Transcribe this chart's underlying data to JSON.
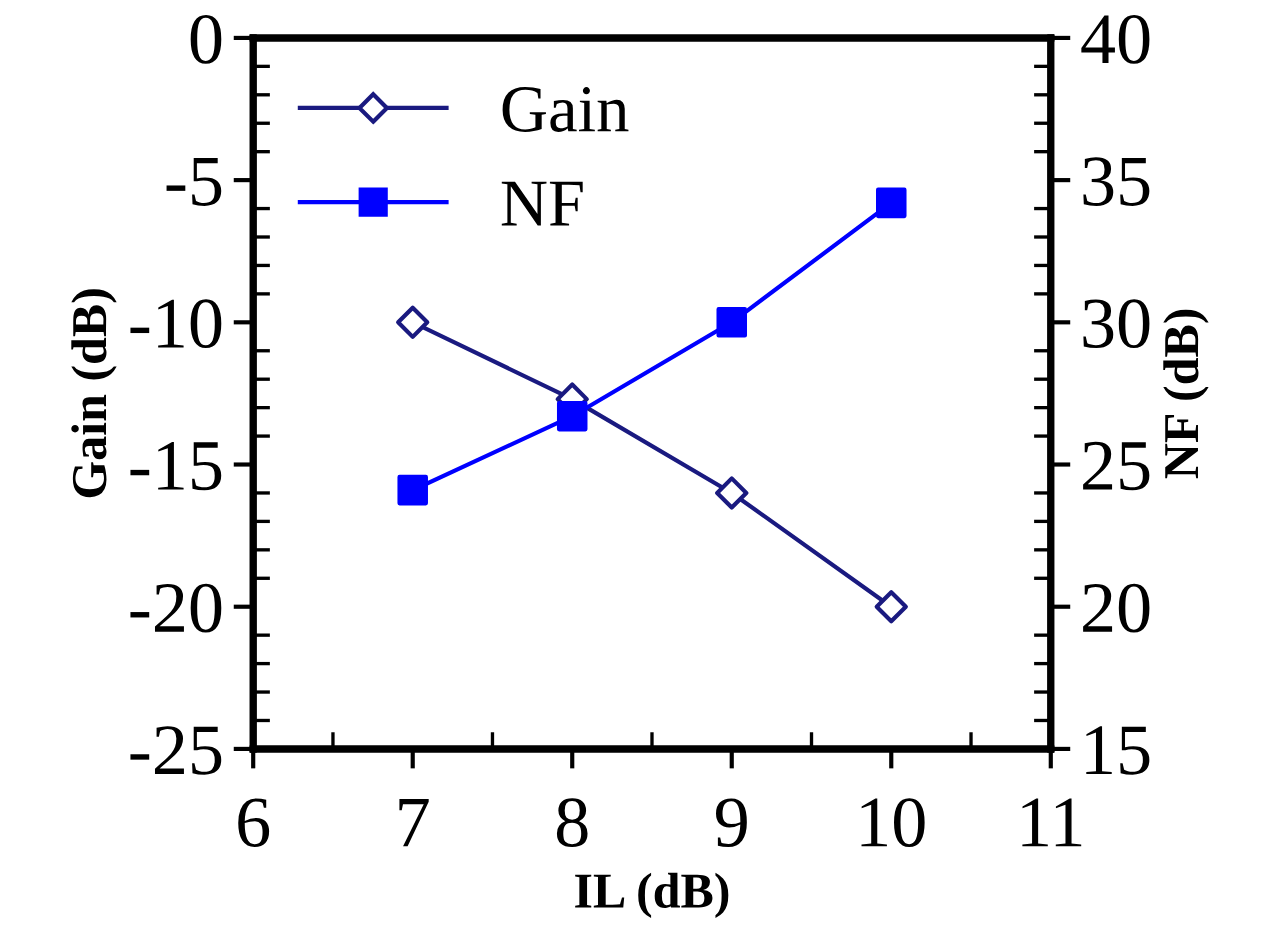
{
  "chart_data": {
    "type": "line",
    "xlabel": "IL (dB)",
    "ylabel": "Gain (dB)",
    "y2label": "NF (dB)",
    "x": [
      7,
      8,
      9,
      10
    ],
    "series": [
      {
        "name": "Gain",
        "color": "#1a1a80",
        "values": [
          -10,
          -12.7,
          -16.0,
          -20
        ],
        "marker": "diamond"
      },
      {
        "name": "NF",
        "color": "#0000ff",
        "values": [
          24.1,
          26.7,
          30.0,
          34.2
        ],
        "marker": "square",
        "axis": "y2"
      }
    ],
    "xlim": [
      6,
      11
    ],
    "xticks": [
      6,
      7,
      8,
      9,
      10,
      11
    ],
    "ylim": [
      -25,
      0
    ],
    "yticks": [
      -25,
      -20,
      -15,
      -10,
      -5,
      0
    ],
    "y2lim": [
      15,
      40
    ],
    "y2ticks": [
      15,
      20,
      25,
      30,
      35,
      40
    ],
    "grid": false,
    "legend": "top left"
  }
}
